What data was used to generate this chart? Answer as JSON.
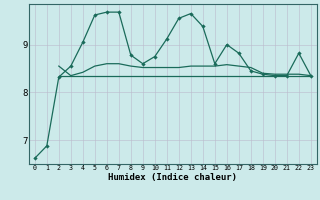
{
  "xlabel": "Humidex (Indice chaleur)",
  "background_color": "#cceaea",
  "grid_color": "#bbcccc",
  "line_color": "#1a6b5a",
  "xlim": [
    -0.5,
    23.5
  ],
  "ylim": [
    6.5,
    9.85
  ],
  "yticks": [
    7,
    8,
    9
  ],
  "xticks": [
    0,
    1,
    2,
    3,
    4,
    5,
    6,
    7,
    8,
    9,
    10,
    11,
    12,
    13,
    14,
    15,
    16,
    17,
    18,
    19,
    20,
    21,
    22,
    23
  ],
  "series_main_x": [
    0,
    1,
    2,
    3,
    4,
    5,
    6,
    7,
    8,
    9,
    10,
    11,
    12,
    13,
    14,
    15,
    16,
    17,
    18,
    19,
    20,
    21,
    22,
    23
  ],
  "series_main_y": [
    6.62,
    6.88,
    8.32,
    8.55,
    9.05,
    9.62,
    9.68,
    9.68,
    8.78,
    8.6,
    8.75,
    9.12,
    9.55,
    9.65,
    9.38,
    8.6,
    9.0,
    8.82,
    8.45,
    8.38,
    8.35,
    8.35,
    8.82,
    8.35
  ],
  "series_mid_x": [
    2,
    3,
    4,
    5,
    6,
    7,
    8,
    9,
    10,
    11,
    12,
    13,
    14,
    15,
    16,
    17,
    18,
    19,
    20,
    21,
    22,
    23
  ],
  "series_mid_y": [
    8.55,
    8.35,
    8.42,
    8.55,
    8.6,
    8.6,
    8.55,
    8.52,
    8.52,
    8.52,
    8.52,
    8.55,
    8.55,
    8.55,
    8.58,
    8.55,
    8.52,
    8.4,
    8.38,
    8.38,
    8.38,
    8.35
  ],
  "series_flat_x": [
    2,
    3,
    4,
    5,
    6,
    7,
    8,
    9,
    10,
    11,
    12,
    13,
    14,
    15,
    16,
    17,
    18,
    19,
    20,
    21,
    22,
    23
  ],
  "series_flat_y": [
    8.35,
    8.35,
    8.35,
    8.35,
    8.35,
    8.35,
    8.35,
    8.35,
    8.35,
    8.35,
    8.35,
    8.35,
    8.35,
    8.35,
    8.35,
    8.35,
    8.35,
    8.35,
    8.35,
    8.35,
    8.35,
    8.35
  ]
}
